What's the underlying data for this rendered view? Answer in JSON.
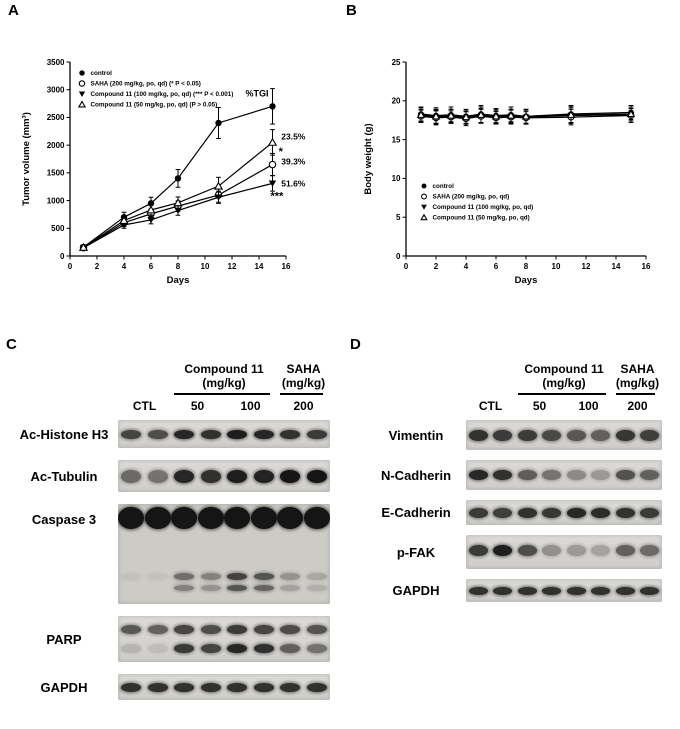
{
  "panel_labels": {
    "a": "A",
    "b": "B",
    "c": "C",
    "d": "D"
  },
  "chart_data": [
    {
      "id": "tumor",
      "type": "line",
      "title": "",
      "xlabel": "Days",
      "ylabel": "Tumor volume (mm³)",
      "xlim": [
        0,
        16
      ],
      "ylim": [
        0,
        3500
      ],
      "xticks": [
        0,
        2,
        4,
        6,
        8,
        10,
        12,
        14,
        16
      ],
      "yticks": [
        0,
        500,
        1000,
        1500,
        2000,
        2500,
        3000,
        3500
      ],
      "legend_position": "top-left-inside",
      "grid": false,
      "x": [
        1,
        4,
        6,
        8,
        11,
        15
      ],
      "series": [
        {
          "name": "control",
          "marker": "circle-filled",
          "values": [
            160,
            700,
            950,
            1400,
            2400,
            2700
          ],
          "err": [
            40,
            90,
            110,
            160,
            280,
            320
          ]
        },
        {
          "name": "SAHA (200 mg/kg, po, qd) (* P < 0.05)",
          "marker": "circle-open",
          "values": [
            150,
            600,
            760,
            900,
            1100,
            1650
          ],
          "err": [
            35,
            70,
            85,
            95,
            130,
            200
          ]
        },
        {
          "name": "Compound 11  (100 mg/kg, po, qd) (*** P < 0.001)",
          "marker": "triangle-down-filled",
          "values": [
            150,
            560,
            650,
            820,
            1060,
            1310
          ],
          "err": [
            35,
            60,
            70,
            85,
            110,
            140
          ]
        },
        {
          "name": "Compound 11  (50 mg/kg, po, qd) (P > 0.05)",
          "marker": "triangle-open",
          "values": [
            155,
            640,
            830,
            960,
            1260,
            2050
          ],
          "err": [
            35,
            70,
            90,
            105,
            160,
            230
          ]
        }
      ],
      "annotations": [
        {
          "text": "%TGI",
          "at": [
            13.0,
            2880
          ],
          "size": 9,
          "bold": true
        },
        {
          "text": "23.5%",
          "at": [
            15.65,
            2100
          ],
          "size": 8.5,
          "bold": true
        },
        {
          "text": "39.3%",
          "at": [
            15.65,
            1650
          ],
          "size": 8.5,
          "bold": true
        },
        {
          "text": "51.6%",
          "at": [
            15.65,
            1250
          ],
          "size": 8.5,
          "bold": true
        },
        {
          "text": "*",
          "at": [
            15.45,
            1820
          ],
          "size": 11,
          "bold": true
        },
        {
          "text": "***",
          "at": [
            14.85,
            1020
          ],
          "size": 11,
          "bold": true
        }
      ]
    },
    {
      "id": "weight",
      "type": "line",
      "title": "",
      "xlabel": "Days",
      "ylabel": "Body weight (g)",
      "xlim": [
        0,
        16
      ],
      "ylim": [
        0,
        25
      ],
      "xticks": [
        0,
        2,
        4,
        6,
        8,
        10,
        12,
        14,
        16
      ],
      "yticks": [
        0,
        5,
        10,
        15,
        20,
        25
      ],
      "legend_position": "bottom-left-inside",
      "grid": false,
      "x": [
        1,
        2,
        3,
        4,
        5,
        6,
        7,
        8,
        11,
        15
      ],
      "series": [
        {
          "name": "control",
          "marker": "circle-filled",
          "values": [
            18.3,
            18.1,
            18.2,
            18.0,
            18.3,
            18.1,
            18.2,
            18.0,
            18.3,
            18.5
          ],
          "err": [
            0.9,
            1.0,
            1.0,
            0.9,
            1.1,
            0.9,
            1.0,
            0.9,
            1.1,
            0.9
          ]
        },
        {
          "name": "SAHA (200 mg/kg, po, qd)",
          "marker": "circle-open",
          "values": [
            18.0,
            17.8,
            17.9,
            17.7,
            18.0,
            17.8,
            17.9,
            17.8,
            17.9,
            18.1
          ],
          "err": [
            0.8,
            0.9,
            0.8,
            0.9,
            0.9,
            0.8,
            0.9,
            0.8,
            1.0,
            0.9
          ]
        },
        {
          "name": "Compound 11 (100 mg/kg, po, qd)",
          "marker": "triangle-down-filled",
          "values": [
            18.1,
            17.9,
            18.0,
            17.8,
            18.1,
            17.9,
            18.0,
            17.9,
            18.1,
            18.2
          ],
          "err": [
            0.8,
            0.9,
            0.9,
            0.8,
            0.9,
            0.8,
            0.9,
            0.9,
            1.0,
            0.8
          ]
        },
        {
          "name": "Compound 11 (50 mg/kg, po, qd)",
          "marker": "triangle-open",
          "values": [
            18.2,
            18.0,
            18.1,
            17.9,
            18.2,
            18.0,
            18.1,
            18.0,
            18.2,
            18.3
          ],
          "err": [
            0.9,
            0.9,
            0.8,
            0.9,
            1.0,
            0.9,
            0.8,
            0.9,
            1.1,
            0.9
          ]
        }
      ],
      "annotations": []
    }
  ],
  "blots": {
    "c": {
      "groups": [
        {
          "line1": "Compound 11",
          "line2": "(mg/kg)",
          "span": [
            2,
            6
          ]
        },
        {
          "line1": "SAHA",
          "line2": "(mg/kg)",
          "span": [
            6,
            8
          ]
        }
      ],
      "lane_labels": [
        {
          "text": "CTL",
          "center_lane": 1
        },
        {
          "text": "50",
          "center_lane": 3
        },
        {
          "text": "100",
          "center_lane": 5
        },
        {
          "text": "200",
          "center_lane": 7
        }
      ],
      "rows": [
        {
          "label": "Ac-Histone H3",
          "h": 28,
          "bands": [
            {
              "y": 0.5,
              "th": 9,
              "lanes": [
                0.75,
                0.7,
                0.9,
                0.85,
                0.95,
                0.9,
                0.85,
                0.8
              ]
            }
          ]
        },
        {
          "label": "Ac-Tubulin",
          "h": 32,
          "bands": [
            {
              "y": 0.5,
              "th": 13,
              "lanes": [
                0.55,
                0.5,
                0.9,
                0.85,
                0.95,
                0.92,
                1,
                1
              ]
            }
          ]
        },
        {
          "label": "Caspase 3",
          "h": 100,
          "label_align": "top",
          "bg": "#cdcbc6",
          "bands": [
            {
              "y": 0.14,
              "th": 22,
              "wide": true,
              "lanes": [
                1,
                1,
                1,
                1,
                1,
                1,
                1,
                1
              ]
            },
            {
              "y": 0.72,
              "th": 7,
              "lanes": [
                0.05,
                0.05,
                0.5,
                0.4,
                0.75,
                0.65,
                0.3,
                0.2
              ]
            },
            {
              "y": 0.84,
              "th": 6,
              "lanes": [
                0.03,
                0.03,
                0.4,
                0.3,
                0.65,
                0.55,
                0.22,
                0.15
              ]
            }
          ]
        },
        {
          "label": "PARP",
          "h": 46,
          "bands": [
            {
              "y": 0.3,
              "th": 9,
              "lanes": [
                0.65,
                0.6,
                0.75,
                0.7,
                0.8,
                0.75,
                0.72,
                0.68
              ]
            },
            {
              "y": 0.7,
              "th": 9,
              "lanes": [
                0.15,
                0.1,
                0.8,
                0.75,
                0.9,
                0.85,
                0.6,
                0.5
              ]
            }
          ]
        },
        {
          "label": "GAPDH",
          "h": 26,
          "bands": [
            {
              "y": 0.5,
              "th": 9,
              "lanes": [
                0.85,
                0.85,
                0.85,
                0.85,
                0.85,
                0.85,
                0.85,
                0.85
              ]
            }
          ]
        }
      ]
    },
    "d": {
      "groups": [
        {
          "line1": "Compound 11",
          "line2": "(mg/kg)",
          "span": [
            2,
            6
          ]
        },
        {
          "line1": "SAHA",
          "line2": "(mg/kg)",
          "span": [
            6,
            8
          ]
        }
      ],
      "lane_labels": [
        {
          "text": "CTL",
          "center_lane": 1
        },
        {
          "text": "50",
          "center_lane": 3
        },
        {
          "text": "100",
          "center_lane": 5
        },
        {
          "text": "200",
          "center_lane": 7
        }
      ],
      "rows": [
        {
          "label": "Vimentin",
          "h": 30,
          "bands": [
            {
              "y": 0.5,
              "th": 11,
              "lanes": [
                0.85,
                0.8,
                0.8,
                0.72,
                0.65,
                0.6,
                0.82,
                0.78
              ]
            }
          ]
        },
        {
          "label": "N-Cadherin",
          "h": 30,
          "bands": [
            {
              "y": 0.5,
              "th": 10,
              "lanes": [
                0.9,
                0.85,
                0.62,
                0.5,
                0.38,
                0.3,
                0.68,
                0.6
              ]
            }
          ]
        },
        {
          "label": "E-Cadherin",
          "h": 25,
          "bands": [
            {
              "y": 0.5,
              "th": 10,
              "lanes": [
                0.8,
                0.78,
                0.85,
                0.82,
                0.9,
                0.88,
                0.85,
                0.8
              ]
            }
          ]
        },
        {
          "label": "p-FAK",
          "h": 34,
          "bands": [
            {
              "y": 0.45,
              "th": 11,
              "lanes": [
                0.8,
                0.95,
                0.7,
                0.35,
                0.3,
                0.25,
                0.6,
                0.55
              ]
            }
          ]
        },
        {
          "label": "GAPDH",
          "h": 23,
          "bands": [
            {
              "y": 0.5,
              "th": 8,
              "lanes": [
                0.85,
                0.85,
                0.85,
                0.85,
                0.85,
                0.85,
                0.85,
                0.85
              ]
            }
          ]
        }
      ]
    }
  }
}
